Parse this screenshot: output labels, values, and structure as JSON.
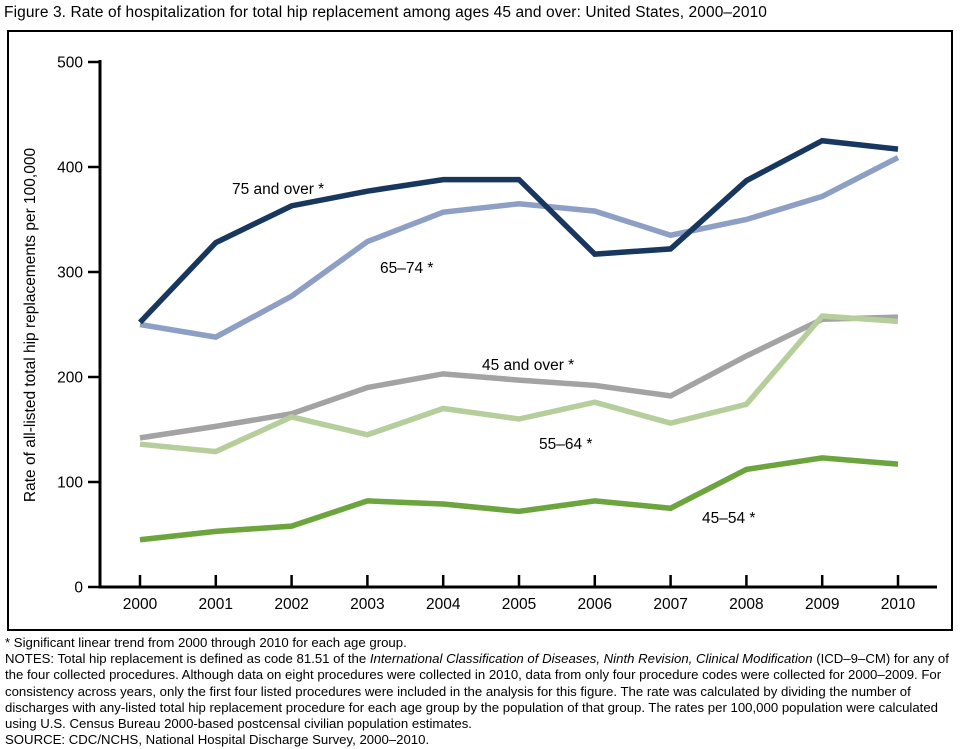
{
  "title": "Figure 3. Rate of hospitalization for total hip replacement among ages 45 and over: United States, 2000–2010",
  "chart_data": {
    "type": "line",
    "categories": [
      "2000",
      "2001",
      "2002",
      "2003",
      "2004",
      "2005",
      "2006",
      "2007",
      "2008",
      "2009",
      "2010"
    ],
    "series": [
      {
        "name": "75 and over *",
        "color": "#17375E",
        "values": [
          252,
          328,
          363,
          377,
          388,
          388,
          317,
          322,
          387,
          425,
          417
        ]
      },
      {
        "name": "65–74 *",
        "color": "#8E9FC5",
        "values": [
          250,
          238,
          277,
          329,
          357,
          365,
          358,
          335,
          350,
          372,
          409
        ]
      },
      {
        "name": "45 and over *",
        "color": "#A3A3A3",
        "values": [
          142,
          153,
          165,
          190,
          203,
          197,
          192,
          182,
          220,
          255,
          257
        ]
      },
      {
        "name": "55–64 *",
        "color": "#B6CE9B",
        "values": [
          136,
          129,
          162,
          145,
          170,
          160,
          176,
          156,
          174,
          258,
          253
        ]
      },
      {
        "name": "45–54 *",
        "color": "#6CA43D",
        "values": [
          45,
          53,
          58,
          82,
          79,
          72,
          82,
          75,
          112,
          123,
          117
        ]
      }
    ],
    "xlabel": "",
    "ylabel": "Rate of all-listed total hip replacements per 100,000",
    "yticks": [
      0,
      100,
      200,
      300,
      400,
      500
    ],
    "ylim": [
      0,
      500
    ],
    "grid": false,
    "legend": "inline-labels"
  },
  "footnotes": {
    "asterisk": "* Significant linear trend from 2000 through 2010 for each age group.",
    "notes_parts": [
      {
        "text": "NOTES: Total hip replacement is defined as code 81.51 of the ",
        "italic": false
      },
      {
        "text": "International Classification of Diseases, Ninth Revision, Clinical Modification",
        "italic": true
      },
      {
        "text": " (ICD–9–CM) for any of the four collected procedures. Although data on eight procedures were collected in 2010, data from only four procedure codes were collected for 2000–2009. For consistency across years, only the first four listed procedures were included in the analysis for this figure. The rate was calculated by dividing the number of discharges with any-listed total hip replacement procedure for each age group by the population of that group. The rates per 100,000 population were calculated using U.S. Census Bureau 2000-based postcensal civilian population estimates.",
        "italic": false
      }
    ],
    "source": "SOURCE: CDC/NCHS, National Hospital Discharge Survey, 2000–2010."
  }
}
